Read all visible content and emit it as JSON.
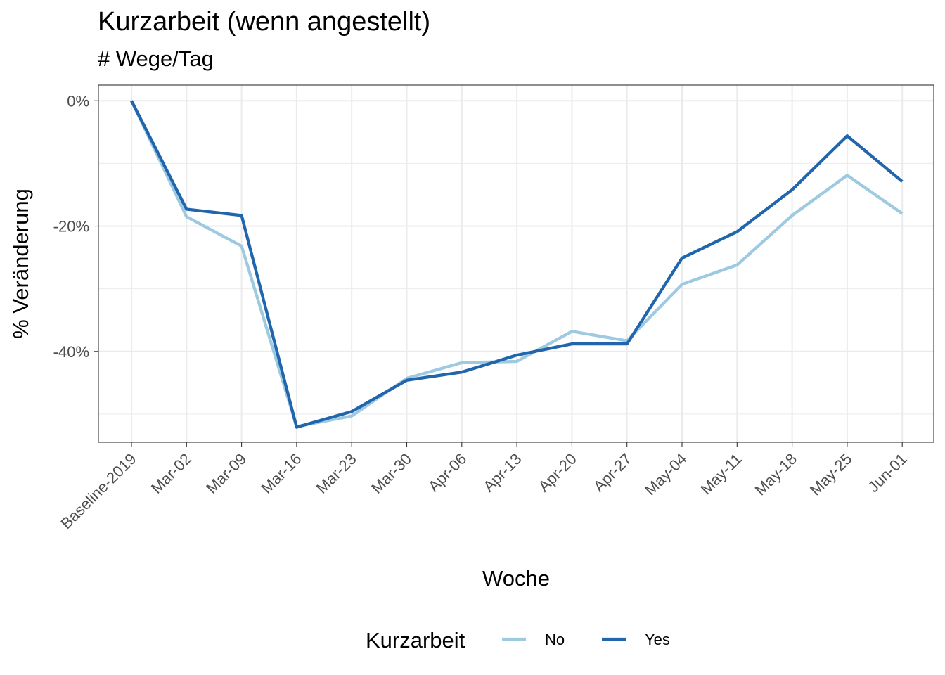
{
  "chart_data": {
    "type": "line",
    "title": "Kurzarbeit (wenn angestellt)",
    "subtitle": "# Wege/Tag",
    "xlabel": "Woche",
    "ylabel": "% Veränderung",
    "categories": [
      "Baseline-2019",
      "Mar-02",
      "Mar-09",
      "Mar-16",
      "Mar-23",
      "Mar-30",
      "Apr-06",
      "Apr-13",
      "Apr-20",
      "Apr-27",
      "May-04",
      "May-11",
      "May-18",
      "May-25",
      "Jun-01"
    ],
    "ylim": [
      -54.5,
      2.5
    ],
    "yticks": [
      0,
      -20,
      -40
    ],
    "ytick_labels": [
      "0%",
      "-20%",
      "-40%"
    ],
    "grid": true,
    "legend": {
      "title": "Kurzarbeit",
      "position": "bottom"
    },
    "series": [
      {
        "name": "No",
        "color": "#9ecae1",
        "values": [
          0,
          -18.5,
          -23.2,
          -52.0,
          -50.3,
          -44.3,
          -41.8,
          -41.6,
          -36.8,
          -38.3,
          -29.3,
          -26.2,
          -18.3,
          -11.9,
          -18.0
        ]
      },
      {
        "name": "Yes",
        "color": "#2166ac",
        "values": [
          0,
          -17.3,
          -18.3,
          -52.1,
          -49.6,
          -44.6,
          -43.3,
          -40.6,
          -38.8,
          -38.8,
          -25.1,
          -20.9,
          -14.2,
          -5.6,
          -12.9
        ]
      }
    ]
  }
}
